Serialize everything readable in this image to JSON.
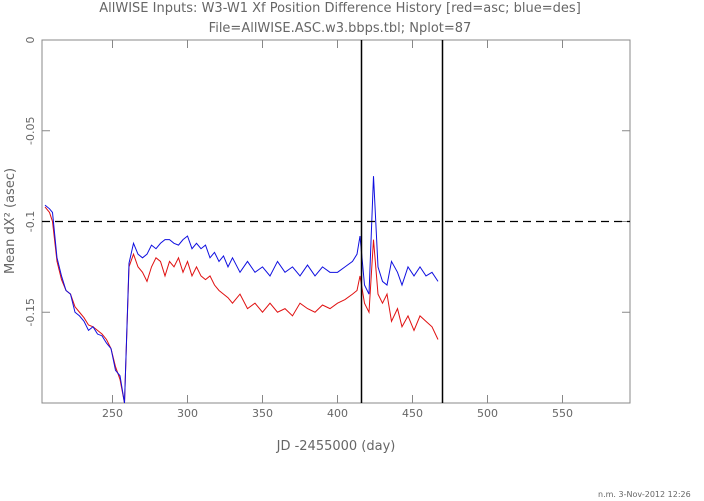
{
  "chart_data": {
    "type": "line",
    "title": "AllWISE Inputs: W3-W1 Xf Position Difference History [red=asc; blue=des]",
    "subtitle": "File=AllWISE.ASC.w3.bbps.tbl; Nplot=87",
    "x_label": "JD -2455000 (day)",
    "y_label": "Mean dX² (asec)",
    "footer": "n.m. 3-Nov-2012 12:26",
    "xlim": [
      203,
      595
    ],
    "ylim": [
      -0.2,
      0
    ],
    "xticks": [
      250,
      300,
      350,
      400,
      450,
      500,
      550
    ],
    "yticks": [
      0,
      -0.05,
      -0.1,
      -0.15
    ],
    "hline": -0.1,
    "vlines": [
      416,
      470
    ],
    "x": [
      205,
      208,
      210,
      213,
      216,
      219,
      222,
      225,
      228,
      231,
      234,
      237,
      240,
      243,
      246,
      249,
      252,
      255,
      258,
      261,
      264,
      267,
      270,
      273,
      276,
      279,
      282,
      285,
      288,
      291,
      294,
      297,
      300,
      303,
      306,
      309,
      312,
      315,
      318,
      321,
      324,
      327,
      330,
      335,
      340,
      345,
      350,
      355,
      360,
      365,
      370,
      375,
      380,
      385,
      390,
      395,
      400,
      405,
      410,
      413,
      415,
      418,
      421,
      424,
      427,
      430,
      433,
      436,
      440,
      443,
      447,
      451,
      455,
      459,
      463,
      467
    ],
    "series": [
      {
        "name": "asc",
        "color": "#e01010",
        "values": [
          -0.092,
          -0.095,
          -0.1,
          -0.122,
          -0.132,
          -0.138,
          -0.14,
          -0.147,
          -0.15,
          -0.153,
          -0.157,
          -0.158,
          -0.16,
          -0.162,
          -0.165,
          -0.17,
          -0.18,
          -0.187,
          -0.2,
          -0.125,
          -0.118,
          -0.125,
          -0.128,
          -0.133,
          -0.125,
          -0.12,
          -0.122,
          -0.13,
          -0.122,
          -0.125,
          -0.12,
          -0.128,
          -0.122,
          -0.13,
          -0.125,
          -0.13,
          -0.132,
          -0.13,
          -0.135,
          -0.138,
          -0.14,
          -0.142,
          -0.145,
          -0.14,
          -0.148,
          -0.145,
          -0.15,
          -0.145,
          -0.15,
          -0.148,
          -0.152,
          -0.145,
          -0.148,
          -0.15,
          -0.146,
          -0.148,
          -0.145,
          -0.143,
          -0.14,
          -0.138,
          -0.13,
          -0.145,
          -0.15,
          -0.11,
          -0.14,
          -0.145,
          -0.14,
          -0.155,
          -0.148,
          -0.158,
          -0.152,
          -0.16,
          -0.152,
          -0.155,
          -0.158,
          -0.165
        ]
      },
      {
        "name": "des",
        "color": "#1010e0",
        "values": [
          -0.091,
          -0.093,
          -0.095,
          -0.12,
          -0.13,
          -0.138,
          -0.14,
          -0.15,
          -0.152,
          -0.155,
          -0.16,
          -0.158,
          -0.162,
          -0.163,
          -0.167,
          -0.17,
          -0.182,
          -0.185,
          -0.2,
          -0.123,
          -0.112,
          -0.118,
          -0.12,
          -0.118,
          -0.113,
          -0.115,
          -0.112,
          -0.11,
          -0.11,
          -0.112,
          -0.113,
          -0.11,
          -0.108,
          -0.115,
          -0.112,
          -0.115,
          -0.113,
          -0.12,
          -0.117,
          -0.122,
          -0.119,
          -0.125,
          -0.12,
          -0.128,
          -0.122,
          -0.128,
          -0.125,
          -0.13,
          -0.122,
          -0.128,
          -0.125,
          -0.13,
          -0.124,
          -0.13,
          -0.125,
          -0.128,
          -0.128,
          -0.125,
          -0.122,
          -0.118,
          -0.108,
          -0.135,
          -0.14,
          -0.075,
          -0.125,
          -0.133,
          -0.135,
          -0.122,
          -0.128,
          -0.135,
          -0.125,
          -0.13,
          -0.125,
          -0.13,
          -0.128,
          -0.133
        ]
      }
    ]
  }
}
